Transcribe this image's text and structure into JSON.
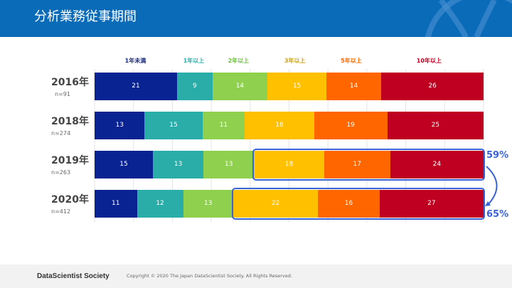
{
  "header": {
    "title": "分析業務従事期間"
  },
  "footer": {
    "brand": "DataScientist Society",
    "copyright": "Copyright © 2020  The Japan DataScientist Society. All Rights Reserved."
  },
  "chart_data": {
    "type": "bar",
    "orientation": "horizontal-stacked-100",
    "categories": [
      "2016年",
      "2018年",
      "2019年",
      "2020年"
    ],
    "sample_sizes": [
      "n=91",
      "n=274",
      "n=263",
      "n=412"
    ],
    "series": [
      {
        "name": "1年未満",
        "color": "#0a2393",
        "values": [
          21,
          13,
          15,
          11
        ]
      },
      {
        "name": "1年以上",
        "color": "#2aaca8",
        "values": [
          9,
          15,
          13,
          12
        ]
      },
      {
        "name": "2年以上",
        "color": "#8fd14f",
        "values": [
          14,
          11,
          13,
          13
        ]
      },
      {
        "name": "3年以上",
        "color": "#ffc000",
        "values": [
          15,
          18,
          18,
          22
        ]
      },
      {
        "name": "5年以上",
        "color": "#ff6600",
        "values": [
          14,
          19,
          17,
          16
        ]
      },
      {
        "name": "10年以上",
        "color": "#c00020",
        "values": [
          26,
          25,
          24,
          27
        ]
      }
    ],
    "legend_colors": [
      "#1a2a7a",
      "#2aaca8",
      "#6cbf3c",
      "#d4a000",
      "#ff6600",
      "#c00020"
    ],
    "annotations": [
      {
        "category": "2019年",
        "label": "59%",
        "covers": [
          "3年以上",
          "5年以上",
          "10年以上"
        ]
      },
      {
        "category": "2020年",
        "label": "65%",
        "covers": [
          "3年以上",
          "5年以上",
          "10年以上"
        ]
      }
    ]
  }
}
